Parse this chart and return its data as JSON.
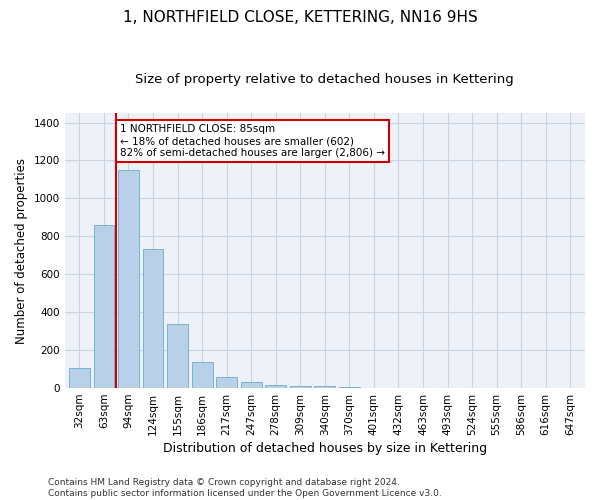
{
  "title": "1, NORTHFIELD CLOSE, KETTERING, NN16 9HS",
  "subtitle": "Size of property relative to detached houses in Kettering",
  "xlabel": "Distribution of detached houses by size in Kettering",
  "ylabel": "Number of detached properties",
  "categories": [
    "32sqm",
    "63sqm",
    "94sqm",
    "124sqm",
    "155sqm",
    "186sqm",
    "217sqm",
    "247sqm",
    "278sqm",
    "309sqm",
    "340sqm",
    "370sqm",
    "401sqm",
    "432sqm",
    "463sqm",
    "493sqm",
    "524sqm",
    "555sqm",
    "586sqm",
    "616sqm",
    "647sqm"
  ],
  "values": [
    105,
    860,
    1150,
    735,
    340,
    135,
    60,
    30,
    18,
    12,
    10,
    5,
    3,
    2,
    2,
    1,
    1,
    0,
    0,
    0,
    0
  ],
  "bar_color": "#b8d0e8",
  "bar_edgecolor": "#6aaad4",
  "grid_color": "#c8d4e4",
  "background_color": "#eef2f8",
  "vline_x": 1.5,
  "vline_color": "#cc0000",
  "annotation_text": "1 NORTHFIELD CLOSE: 85sqm\n← 18% of detached houses are smaller (602)\n82% of semi-detached houses are larger (2,806) →",
  "annotation_box_color": "#ffffff",
  "annotation_box_edgecolor": "#cc0000",
  "ylim": [
    0,
    1450
  ],
  "yticks": [
    0,
    200,
    400,
    600,
    800,
    1000,
    1200,
    1400
  ],
  "footer": "Contains HM Land Registry data © Crown copyright and database right 2024.\nContains public sector information licensed under the Open Government Licence v3.0.",
  "title_fontsize": 11,
  "subtitle_fontsize": 9.5,
  "xlabel_fontsize": 9,
  "ylabel_fontsize": 8.5,
  "tick_fontsize": 7.5,
  "annotation_fontsize": 7.5,
  "footer_fontsize": 6.5
}
